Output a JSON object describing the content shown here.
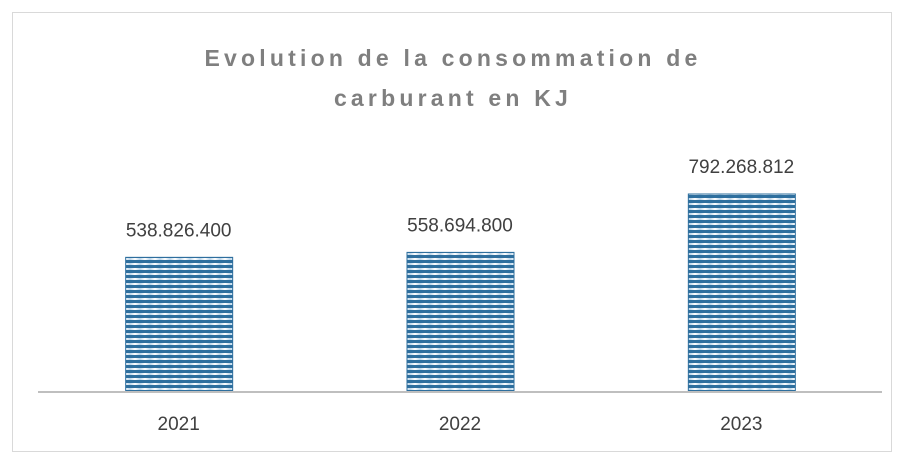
{
  "chart_data": {
    "type": "bar",
    "title": "Evolution de la consommation de carburant en KJ",
    "categories": [
      "2021",
      "2022",
      "2023"
    ],
    "values": [
      538826400,
      558694800,
      792268812
    ],
    "value_labels": [
      "538.826.400",
      "558.694.800",
      "792.268.812"
    ],
    "color": "#2e6f9e"
  }
}
